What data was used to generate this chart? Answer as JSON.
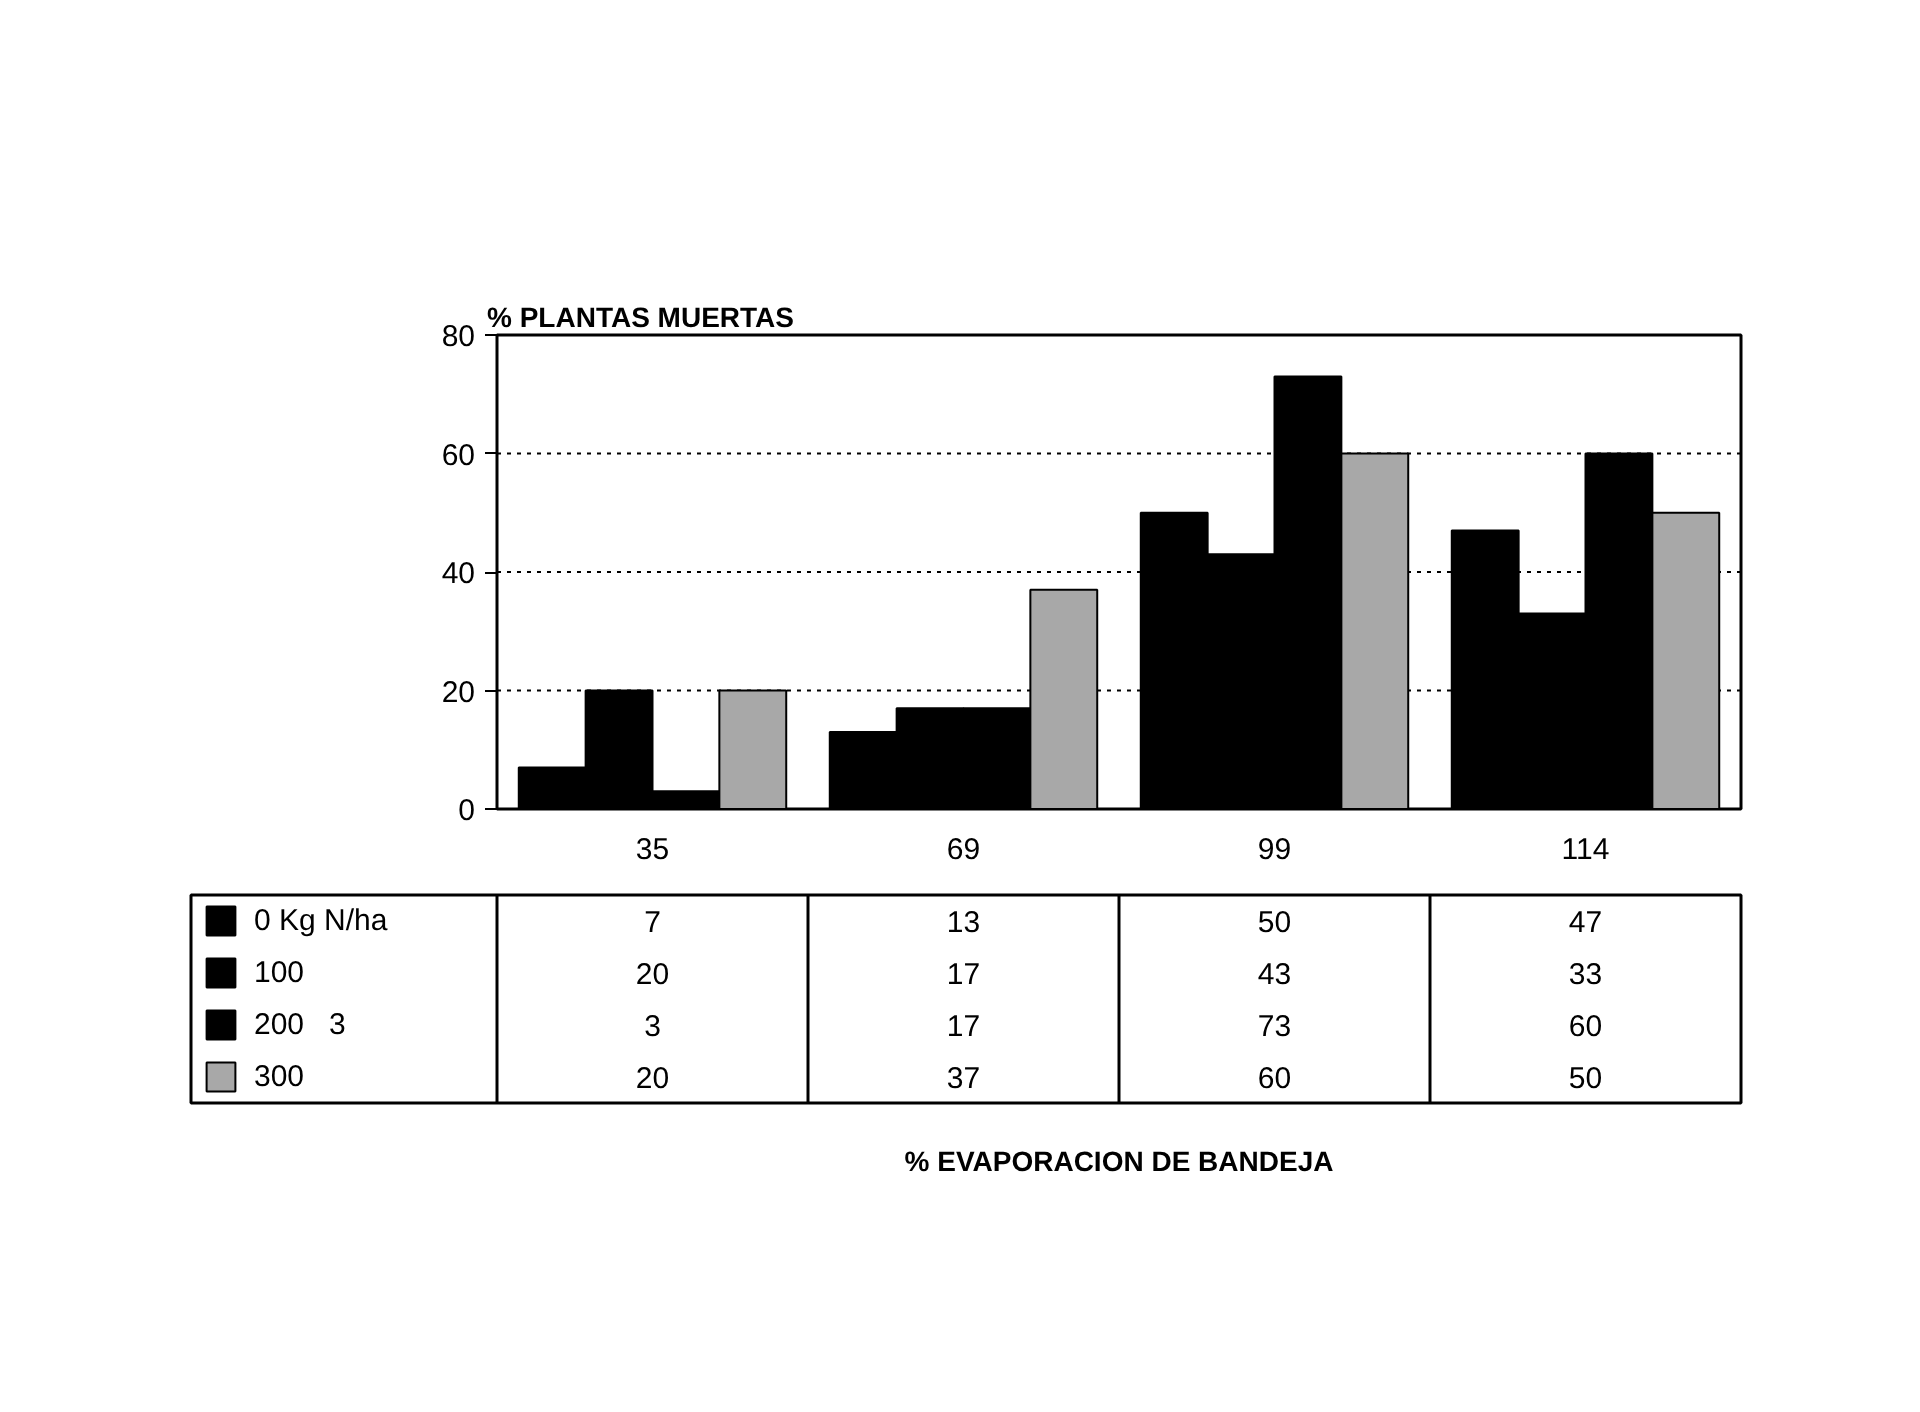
{
  "chart_data": {
    "type": "bar",
    "ylabel": "% PLANTAS MUERTAS",
    "annotations": [
      "% EVAPORACION DE BANDEJA"
    ],
    "categories": [
      "35",
      "69",
      "99",
      "114"
    ],
    "series": [
      {
        "name": "0 Kg N/ha",
        "color": "#000000",
        "values": [
          7,
          13,
          50,
          47
        ]
      },
      {
        "name": "100",
        "color": "#000000",
        "values": [
          20,
          17,
          43,
          33
        ]
      },
      {
        "name": "200   3",
        "color": "#000000",
        "values": [
          3,
          17,
          73,
          60
        ]
      },
      {
        "name": "300",
        "color": "#a8a8a8",
        "values": [
          20,
          37,
          60,
          50
        ]
      }
    ],
    "ylim": [
      0,
      80
    ],
    "yticks": [
      0,
      20,
      40,
      60,
      80
    ],
    "grid": "y",
    "legend": "bottom",
    "data_labels": true
  }
}
